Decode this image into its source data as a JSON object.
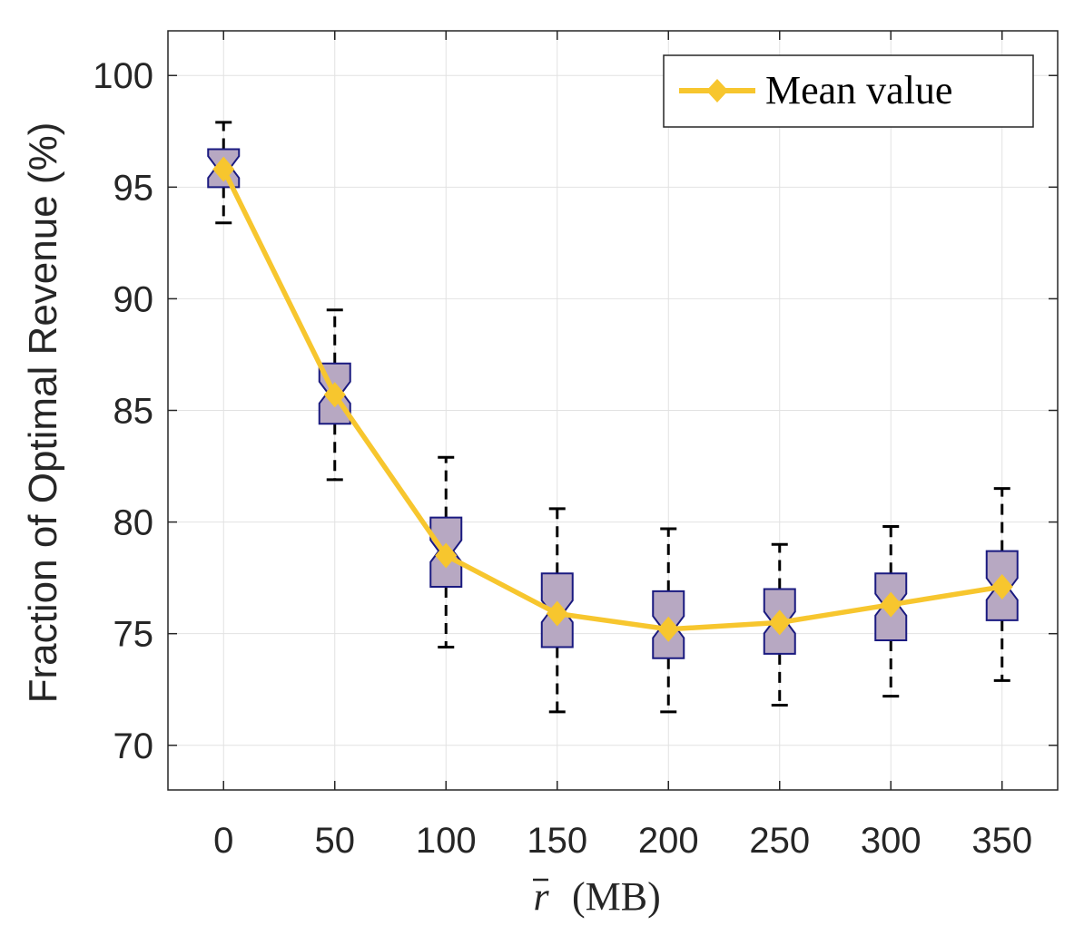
{
  "chart_data": {
    "type": "box",
    "x": [
      0,
      50,
      100,
      150,
      200,
      250,
      300,
      350
    ],
    "xlabel_symbol": "r",
    "xlabel_unit": "(MB)",
    "ylabel": "Fraction of Optimal Revenue (%)",
    "xlim": [
      -25,
      375
    ],
    "ylim": [
      68,
      102
    ],
    "xticks": [
      "0",
      "50",
      "100",
      "150",
      "200",
      "250",
      "300",
      "350"
    ],
    "yticks": [
      "70",
      "75",
      "80",
      "85",
      "90",
      "95",
      "100"
    ],
    "grid": true,
    "boxes": [
      {
        "x": 0,
        "whisker_low": 93.4,
        "q1": 95.0,
        "median": 95.9,
        "q3": 96.7,
        "whisker_high": 97.9
      },
      {
        "x": 50,
        "whisker_low": 81.9,
        "q1": 84.4,
        "median": 85.8,
        "q3": 87.1,
        "whisker_high": 89.5
      },
      {
        "x": 100,
        "whisker_low": 74.4,
        "q1": 77.1,
        "median": 78.7,
        "q3": 80.2,
        "whisker_high": 82.9
      },
      {
        "x": 150,
        "whisker_low": 71.5,
        "q1": 74.4,
        "median": 76.0,
        "q3": 77.7,
        "whisker_high": 80.6
      },
      {
        "x": 200,
        "whisker_low": 71.5,
        "q1": 73.9,
        "median": 75.3,
        "q3": 76.9,
        "whisker_high": 79.7
      },
      {
        "x": 250,
        "whisker_low": 71.8,
        "q1": 74.1,
        "median": 75.5,
        "q3": 77.0,
        "whisker_high": 79.0
      },
      {
        "x": 300,
        "whisker_low": 72.2,
        "q1": 74.7,
        "median": 76.3,
        "q3": 77.7,
        "whisker_high": 79.8
      },
      {
        "x": 350,
        "whisker_low": 72.9,
        "q1": 75.6,
        "median": 77.0,
        "q3": 78.7,
        "whisker_high": 81.5
      }
    ],
    "mean_series": {
      "name": "Mean value",
      "values": [
        95.8,
        85.7,
        78.5,
        75.9,
        75.2,
        75.5,
        76.3,
        77.1
      ]
    },
    "legend": {
      "entries": [
        "Mean value"
      ],
      "location": "top-right"
    },
    "colors": {
      "box_fill": "#b7a8c2",
      "box_edge": "#1a1a80",
      "whisker": "#000000",
      "mean_line": "#f7c62e",
      "grid": "#e2e2e2",
      "axis": "#262626"
    }
  }
}
